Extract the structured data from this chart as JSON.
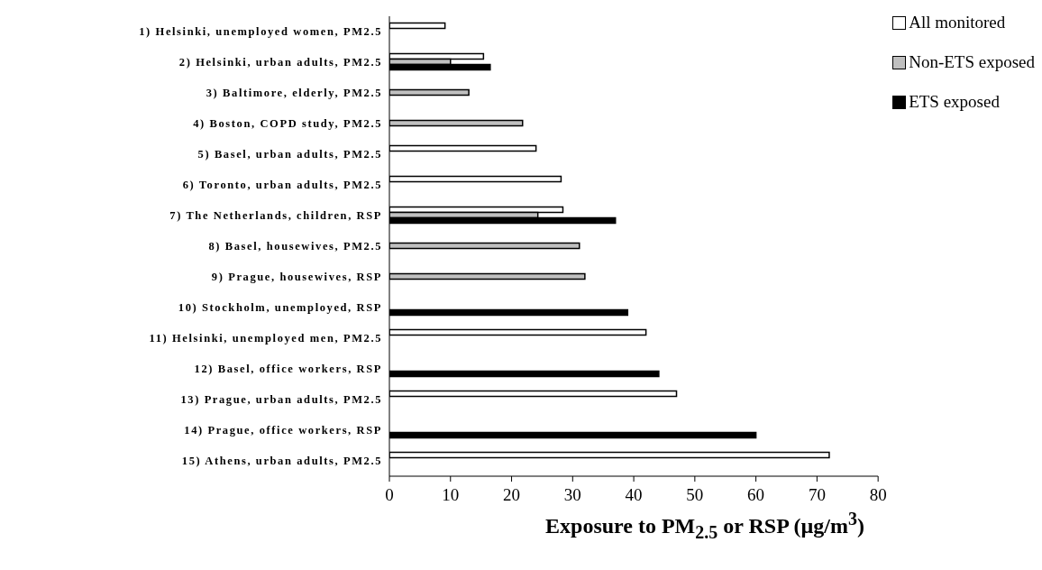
{
  "chart_data": {
    "type": "bar",
    "orientation": "horizontal",
    "xlabel": "Exposure to PM$_{2.5}$ or RSP  (µg/m$^{3}$)",
    "categories": [
      "1) Helsinki, unemployed women, PM2.5",
      "2) Helsinki, urban adults, PM2.5",
      "3) Baltimore, elderly, PM2.5",
      "4) Boston, COPD study, PM2.5",
      "5) Basel, urban adults, PM2.5",
      "6) Toronto, urban adults, PM2.5",
      "7) The Netherlands, children, RSP",
      "8) Basel, housewives, PM2.5",
      "9) Prague, housewives, RSP",
      "10) Stockholm, unemployed, RSP",
      "11) Helsinki, unemployed men, PM2.5",
      "12) Basel, office workers, RSP",
      "13) Prague, urban adults, PM2.5",
      "14) Prague, office workers, RSP",
      "15) Athens, urban adults, PM2.5"
    ],
    "series": [
      {
        "name": "All monitored",
        "color": "#ffffff",
        "values": [
          9.1,
          15.4,
          null,
          null,
          24.0,
          28.1,
          28.4,
          null,
          null,
          null,
          42.0,
          null,
          47.0,
          null,
          72.0
        ]
      },
      {
        "name": "Non-ETS exposed",
        "color": "#c0c0c0",
        "values": [
          null,
          10.0,
          13.0,
          21.8,
          null,
          null,
          24.3,
          31.1,
          32.0,
          null,
          null,
          null,
          null,
          null,
          null
        ]
      },
      {
        "name": "ETS exposed",
        "color": "#000000",
        "values": [
          null,
          16.5,
          null,
          null,
          null,
          null,
          37.0,
          null,
          null,
          39.0,
          null,
          44.1,
          null,
          60.0,
          null
        ]
      }
    ],
    "xlim": [
      0,
      80
    ],
    "xticks": [
      0,
      10,
      20,
      30,
      40,
      50,
      60,
      70,
      80
    ],
    "grid": false,
    "legend": "top right"
  }
}
